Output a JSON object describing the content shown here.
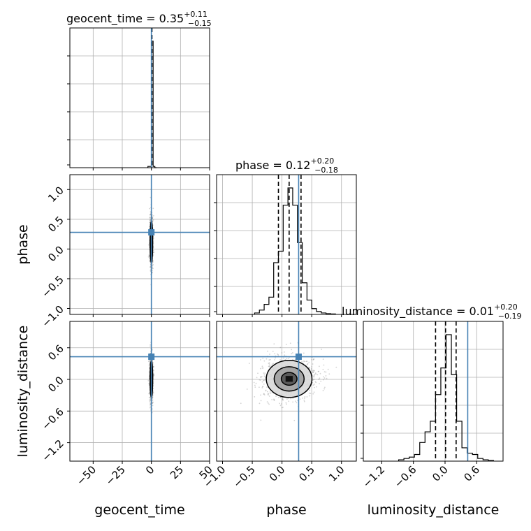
{
  "parameters": [
    "geocent_time",
    "phase",
    "luminosity_distance"
  ],
  "injection": {
    "geocent_time": 0,
    "phase": 0.28,
    "luminosity_distance": 0.43
  },
  "colors": {
    "truth": "#4682b4",
    "hist": "#000000",
    "grid": "#b0b0b0",
    "points": "#808080"
  },
  "titles": [
    {
      "param": "geocent_time",
      "prefix": "geocent_time = 0.35",
      "plus": "+0.11",
      "minus": "−0.15"
    },
    {
      "param": "phase",
      "prefix": "phase = 0.12",
      "plus": "+0.20",
      "minus": "−0.18"
    },
    {
      "param": "luminosity_distance",
      "prefix": "luminosity_distance = 0.01",
      "plus": "+0.20",
      "minus": "−0.19"
    }
  ],
  "axis_labels": {
    "bottom": [
      "geocent_time",
      "phase",
      "luminosity_distance"
    ],
    "left": [
      "phase",
      "luminosity_distance"
    ]
  },
  "chart_data": {
    "type": "corner",
    "ranges": {
      "geocent_time": [
        -70,
        50
      ],
      "phase": [
        -1.1,
        1.25
      ],
      "luminosity_distance": [
        -1.55,
        1.1
      ]
    },
    "ticks": {
      "geocent_time": {
        "values": [
          -50,
          -25,
          0,
          25,
          50
        ],
        "labels": [
          "−50",
          "−25",
          "0",
          "25",
          "50"
        ]
      },
      "phase": {
        "values": [
          -1.0,
          -0.5,
          0.0,
          0.5,
          1.0
        ],
        "labels": [
          "−1.0",
          "−0.5",
          "0.0",
          "0.5",
          "1.0"
        ]
      },
      "luminosity_distance": {
        "values": [
          -1.2,
          -0.6,
          0.0,
          0.6
        ],
        "labels": [
          "−1.2",
          "−0.6",
          "0.0",
          "0.6"
        ]
      }
    },
    "histograms": {
      "geocent_time": {
        "bins": [
          -3,
          -1.5,
          0,
          1.5,
          3,
          4.5
        ],
        "counts": [
          0.01,
          0.01,
          1.0,
          0.01,
          0.0
        ],
        "quantiles": [
          0.2,
          0.35,
          0.46
        ]
      },
      "phase": {
        "edges": [
          -0.46,
          -0.38,
          -0.3,
          -0.22,
          -0.14,
          -0.06,
          0.02,
          0.1,
          0.18,
          0.26,
          0.34,
          0.42,
          0.5,
          0.58,
          0.66,
          0.74,
          0.82,
          0.9
        ],
        "counts": [
          0.01,
          0.03,
          0.07,
          0.12,
          0.36,
          0.44,
          0.76,
          0.88,
          0.76,
          0.5,
          0.22,
          0.1,
          0.04,
          0.02,
          0.01,
          0.005,
          0.003
        ],
        "quantiles": [
          -0.06,
          0.12,
          0.32
        ]
      },
      "luminosity_distance": {
        "edges": [
          -0.88,
          -0.78,
          -0.68,
          -0.58,
          -0.48,
          -0.38,
          -0.28,
          -0.18,
          -0.08,
          0.02,
          0.12,
          0.22,
          0.32,
          0.42,
          0.52,
          0.62,
          0.72,
          0.82,
          0.92
        ],
        "counts": [
          0.01,
          0.02,
          0.03,
          0.05,
          0.14,
          0.22,
          0.3,
          0.5,
          0.7,
          0.95,
          0.65,
          0.3,
          0.1,
          0.06,
          0.05,
          0.02,
          0.01,
          0.005
        ],
        "quantiles": [
          -0.18,
          0.01,
          0.21
        ]
      }
    },
    "pairs": [
      {
        "x": "geocent_time",
        "y": "phase",
        "center": [
          0,
          0.12
        ],
        "spread": [
          0.7,
          0.22
        ]
      },
      {
        "x": "geocent_time",
        "y": "luminosity_distance",
        "center": [
          0,
          0.01
        ],
        "spread": [
          0.7,
          0.22
        ]
      },
      {
        "x": "phase",
        "y": "luminosity_distance",
        "center": [
          0.12,
          0.01
        ],
        "spread": [
          0.24,
          0.22
        ]
      }
    ],
    "grid": true
  }
}
